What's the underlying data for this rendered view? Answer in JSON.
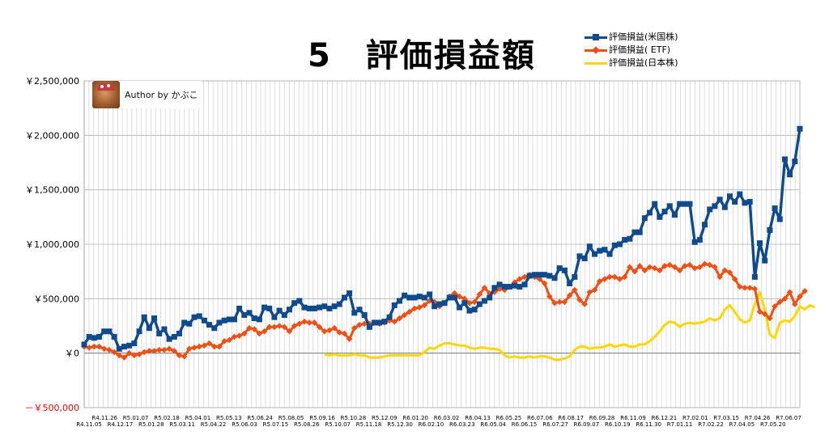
{
  "chart_data": {
    "type": "line",
    "title": "5　評価損益額",
    "ylim": [
      -500000,
      2500000
    ],
    "y_ticks": [
      {
        "value": 2500000,
        "label": "￥2,500,000",
        "color": "#000000"
      },
      {
        "value": 2000000,
        "label": "￥2,000,000",
        "color": "#000000"
      },
      {
        "value": 1500000,
        "label": "￥1,500,000",
        "color": "#000000"
      },
      {
        "value": 1000000,
        "label": "￥1,000,000",
        "color": "#000000"
      },
      {
        "value": 500000,
        "label": "￥500,000",
        "color": "#000000"
      },
      {
        "value": 0,
        "label": "￥0",
        "color": "#000000"
      },
      {
        "value": -500000,
        "label": "－￥500,000",
        "color": "#ff0000"
      }
    ],
    "x_labels_top": [
      "R4.11.26",
      "R5.01.07",
      "R5.02.18",
      "R5.04.01",
      "R5.05.13",
      "R5.06.24",
      "R5.08.05",
      "R5.09.16",
      "R5.10.28",
      "R5.12.09",
      "R6.01.20",
      "R6.03.02",
      "R6.04.13",
      "R6.05.25",
      "R6.07.06",
      "R6.08.17",
      "R6.09.28",
      "R6.11.09",
      "R6.12.21",
      "R7.02.01",
      "R7.03.15",
      "R7.04.26",
      "R7.06.07"
    ],
    "x_labels_bottom": [
      "R4.11.05",
      "R4.12.17",
      "R5.01.28",
      "R5.03.11",
      "R5.04.22",
      "R5.06.03",
      "R5.07.15",
      "R5.08.26",
      "R5.10.07",
      "R5.11.18",
      "R5.12.30",
      "R6.02.10",
      "R6.03.23",
      "R6.05.04",
      "R6.06.15",
      "R6.07.27",
      "R6.09.07",
      "R6.10.19",
      "R6.11.30",
      "R7.01.11",
      "R7.02.22",
      "R7.04.05",
      "R7.05.20"
    ],
    "legend_position": "top-right",
    "grid": true,
    "series": [
      {
        "name": "評価損益(米国株)",
        "color": "#0e4a8c",
        "marker": "square",
        "values": [
          80000,
          150000,
          140000,
          150000,
          200000,
          200000,
          150000,
          40000,
          60000,
          70000,
          90000,
          200000,
          330000,
          230000,
          320000,
          180000,
          220000,
          130000,
          150000,
          180000,
          280000,
          270000,
          330000,
          340000,
          300000,
          260000,
          230000,
          280000,
          300000,
          310000,
          310000,
          410000,
          350000,
          370000,
          320000,
          310000,
          420000,
          410000,
          330000,
          390000,
          350000,
          400000,
          460000,
          480000,
          420000,
          410000,
          410000,
          420000,
          430000,
          410000,
          430000,
          450000,
          510000,
          550000,
          370000,
          400000,
          350000,
          240000,
          280000,
          280000,
          290000,
          330000,
          440000,
          480000,
          530000,
          510000,
          510000,
          520000,
          510000,
          540000,
          430000,
          450000,
          460000,
          510000,
          510000,
          420000,
          460000,
          390000,
          400000,
          450000,
          480000,
          510000,
          600000,
          630000,
          610000,
          610000,
          620000,
          610000,
          630000,
          710000,
          720000,
          720000,
          720000,
          710000,
          690000,
          780000,
          760000,
          640000,
          700000,
          890000,
          870000,
          980000,
          910000,
          940000,
          950000,
          910000,
          990000,
          1000000,
          1040000,
          1050000,
          1110000,
          1110000,
          1240000,
          1290000,
          1370000,
          1250000,
          1300000,
          1350000,
          1270000,
          1370000,
          1370000,
          1370000,
          1020000,
          1040000,
          1180000,
          1320000,
          1350000,
          1410000,
          1340000,
          1440000,
          1390000,
          1460000,
          1380000,
          1390000,
          700000,
          1010000,
          850000,
          1130000,
          1330000,
          1230000,
          1780000,
          1640000,
          1760000,
          2060000
        ]
      },
      {
        "name": "評価損益( ETF)",
        "color": "#f05014",
        "marker": "diamond",
        "values": [
          60000,
          50000,
          60000,
          60000,
          40000,
          30000,
          10000,
          -20000,
          -40000,
          0,
          -20000,
          -10000,
          10000,
          20000,
          20000,
          30000,
          30000,
          40000,
          20000,
          -20000,
          -30000,
          40000,
          50000,
          60000,
          70000,
          90000,
          60000,
          60000,
          110000,
          120000,
          150000,
          160000,
          180000,
          230000,
          220000,
          180000,
          200000,
          240000,
          240000,
          250000,
          240000,
          200000,
          250000,
          270000,
          290000,
          280000,
          280000,
          240000,
          200000,
          210000,
          230000,
          190000,
          180000,
          130000,
          230000,
          260000,
          270000,
          270000,
          280000,
          270000,
          280000,
          300000,
          290000,
          320000,
          350000,
          380000,
          410000,
          420000,
          440000,
          480000,
          470000,
          430000,
          460000,
          520000,
          550000,
          520000,
          500000,
          460000,
          470000,
          540000,
          600000,
          550000,
          560000,
          590000,
          580000,
          610000,
          650000,
          680000,
          700000,
          720000,
          700000,
          680000,
          640000,
          520000,
          460000,
          470000,
          470000,
          530000,
          580000,
          490000,
          450000,
          560000,
          580000,
          660000,
          680000,
          700000,
          700000,
          680000,
          700000,
          790000,
          750000,
          800000,
          760000,
          790000,
          780000,
          760000,
          800000,
          810000,
          790000,
          760000,
          800000,
          810000,
          780000,
          790000,
          820000,
          810000,
          790000,
          700000,
          760000,
          740000,
          680000,
          610000,
          600000,
          600000,
          590000,
          380000,
          360000,
          320000,
          430000,
          470000,
          500000,
          560000,
          450000,
          520000,
          570000
        ]
      },
      {
        "name": "評価損益(日本株)",
        "color": "#ffd700",
        "marker": "none",
        "values": [
          null,
          null,
          null,
          null,
          null,
          null,
          null,
          null,
          null,
          null,
          null,
          null,
          null,
          null,
          null,
          null,
          null,
          null,
          null,
          null,
          null,
          null,
          null,
          null,
          null,
          null,
          null,
          null,
          null,
          null,
          null,
          null,
          null,
          null,
          null,
          null,
          null,
          null,
          null,
          null,
          null,
          null,
          null,
          null,
          null,
          null,
          null,
          null,
          -10000,
          -20000,
          -10000,
          -20000,
          -20000,
          -20000,
          -10000,
          -20000,
          -20000,
          -40000,
          -40000,
          -40000,
          -30000,
          -20000,
          -20000,
          -20000,
          -20000,
          -20000,
          -20000,
          -20000,
          10000,
          50000,
          40000,
          70000,
          90000,
          90000,
          80000,
          70000,
          70000,
          50000,
          40000,
          50000,
          50000,
          40000,
          40000,
          30000,
          -20000,
          -40000,
          -30000,
          -40000,
          -40000,
          -30000,
          -40000,
          -30000,
          -30000,
          -40000,
          -60000,
          -60000,
          -50000,
          -30000,
          30000,
          60000,
          60000,
          40000,
          50000,
          50000,
          60000,
          80000,
          60000,
          70000,
          80000,
          60000,
          60000,
          80000,
          80000,
          110000,
          150000,
          200000,
          260000,
          290000,
          280000,
          240000,
          270000,
          280000,
          270000,
          280000,
          290000,
          320000,
          300000,
          320000,
          400000,
          440000,
          380000,
          310000,
          280000,
          300000,
          450000,
          560000,
          400000,
          170000,
          140000,
          280000,
          300000,
          290000,
          340000,
          430000,
          400000,
          440000,
          420000
        ]
      }
    ]
  },
  "legend": {
    "items": [
      {
        "label": "評価損益(米国株)",
        "color": "#0e4a8c"
      },
      {
        "label": "評価損益( ETF)",
        "color": "#f05014"
      },
      {
        "label": "評価損益(日本株)",
        "color": "#ffd700"
      }
    ]
  },
  "author": {
    "label": "Author by かぶこ"
  }
}
